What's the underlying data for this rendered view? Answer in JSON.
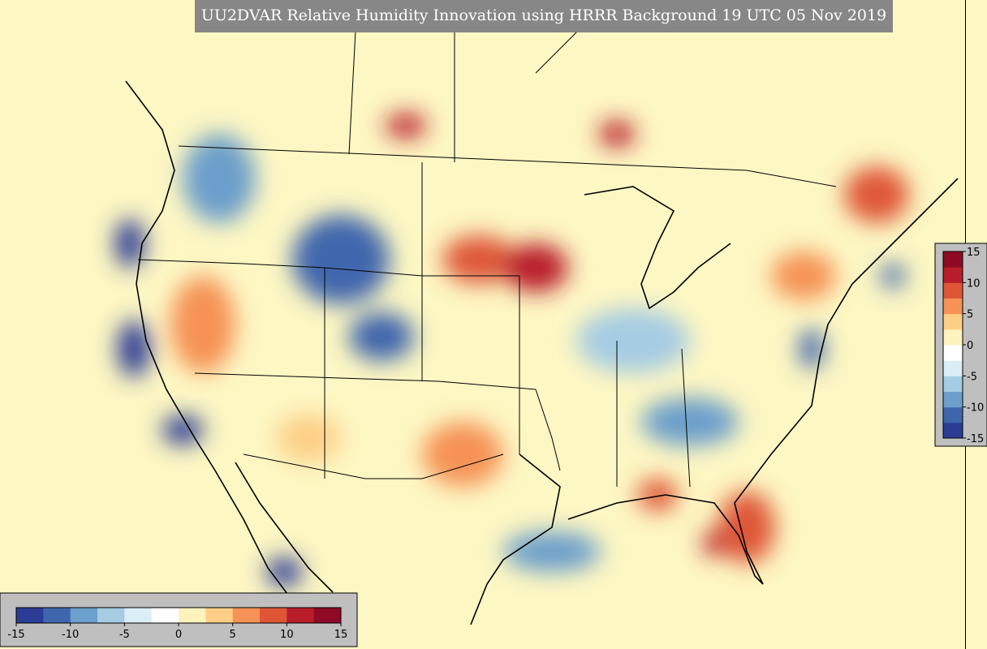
{
  "title": "UU2DVAR Relative Humidity Innovation using HRRR Background 19 UTC 05 Nov 2019",
  "colorbar": {
    "lim": [
      -15,
      15
    ],
    "ticks": [
      -15,
      -10,
      -5,
      0,
      5,
      10,
      15
    ],
    "colors": [
      "#2c3b94",
      "#3f66ad",
      "#6c9fcb",
      "#a5cce3",
      "#dceef5",
      "#ffffff",
      "#fff3bd",
      "#fdcf86",
      "#f69255",
      "#df5637",
      "#b91d2a",
      "#8e0a25"
    ]
  }
}
